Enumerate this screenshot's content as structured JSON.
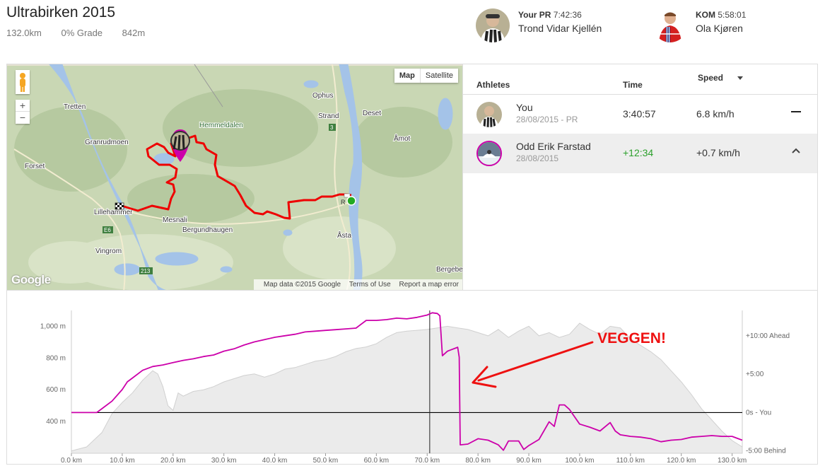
{
  "segment": {
    "title": "Ultrabirken 2015",
    "distance": "132.0km",
    "grade": "0% Grade",
    "elevation": "842m"
  },
  "leaders": {
    "pr": {
      "label": "Your PR",
      "time": "7:42:36",
      "name": "Trond Vidar Kjellén"
    },
    "kom": {
      "label": "KOM",
      "time": "5:58:01",
      "name": "Ola Kjøren"
    }
  },
  "map": {
    "toggle": [
      "Map",
      "Satellite"
    ],
    "zoom_in": "+",
    "zoom_out": "−",
    "logo": "Google",
    "footer": [
      "Map data ©2015 Google",
      "Terms of Use",
      "Report a map error"
    ],
    "place_labels": [
      "Tretten",
      "Ophus",
      "Strand",
      "Deset",
      "Hemmeldalen",
      "Åmot",
      "Granrudmoen",
      "Forset",
      "Lillehammer",
      "Mesnali",
      "Bergundhaugen",
      "Vingrom",
      "Åsta",
      "Bergebe",
      "3",
      "E6",
      "213",
      "R"
    ],
    "colors": {
      "route": "#ee0000",
      "start": "#22aa22",
      "terrain": "#c9d7b4",
      "water": "#a4c3e8"
    }
  },
  "compare": {
    "columns": {
      "athletes": "Athletes",
      "time": "Time",
      "speed": "Speed"
    },
    "rows": [
      {
        "name": "You",
        "date": "28/08/2015 - PR",
        "time": "3:40:57",
        "speed": "6.8 km/h",
        "action_icon": "minus-icon"
      },
      {
        "name": "Odd Erik Farstad",
        "date": "28/08/2015",
        "time": "+12:34",
        "speed": "+0.7 km/h",
        "action_icon": "chevron-up-icon"
      }
    ]
  },
  "chart_data": {
    "type": "area",
    "title": "",
    "xlabel": "",
    "ylabel": "",
    "xlim": [
      0,
      132
    ],
    "ylim": [
      200,
      1100
    ],
    "x_ticks": [
      "0.0 km",
      "10.0 km",
      "20.0 km",
      "30.0 km",
      "40.0 km",
      "50.0 km",
      "60.0 km",
      "70.0 km",
      "80.0 km",
      "90.0 km",
      "100.0 km",
      "110.0 km",
      "120.0 km",
      "130.0 km"
    ],
    "y_ticks_left": [
      "1,000 m",
      "800 m",
      "600 m",
      "400 m"
    ],
    "y_ticks_left_values": [
      1000,
      800,
      600,
      400
    ],
    "y_ticks_right": [
      "+10:00 Ahead",
      "+5:00",
      "0s - You",
      "-5:00 Behind"
    ],
    "y_ticks_right_values": [
      10,
      5,
      0,
      -5
    ],
    "y2lim": [
      -5.3,
      13.3
    ],
    "cursor_x": 70.5,
    "annotation": "VEGGEN!",
    "series": [
      {
        "name": "elevation",
        "color": "#d0d0d0",
        "x": [
          0,
          3,
          6,
          8,
          10,
          12,
          14,
          16,
          17,
          18,
          19,
          20,
          21,
          22,
          24,
          26,
          28,
          30,
          32,
          34,
          36,
          38,
          40,
          42,
          44,
          46,
          48,
          50,
          52,
          54,
          56,
          58,
          60,
          62,
          64,
          66,
          68,
          70,
          72,
          74,
          76,
          78,
          80,
          82,
          84,
          86,
          88,
          90,
          92,
          94,
          96,
          98,
          100,
          102,
          104,
          106,
          108,
          110,
          112,
          114,
          116,
          118,
          120,
          122,
          124,
          126,
          128,
          130,
          132
        ],
        "y": [
          215,
          240,
          330,
          450,
          520,
          580,
          660,
          720,
          700,
          620,
          500,
          470,
          580,
          560,
          590,
          600,
          620,
          650,
          670,
          690,
          700,
          680,
          700,
          730,
          740,
          760,
          780,
          790,
          810,
          840,
          860,
          870,
          890,
          930,
          960,
          970,
          975,
          980,
          990,
          1000,
          990,
          980,
          960,
          940,
          980,
          930,
          970,
          1000,
          940,
          960,
          930,
          950,
          1020,
          980,
          950,
          1000,
          990,
          920,
          880,
          840,
          790,
          720,
          650,
          570,
          480,
          410,
          340,
          280,
          240
        ]
      },
      {
        "name": "time-gap",
        "color": "#cc00aa",
        "x": [
          0,
          5,
          6,
          8,
          10,
          11,
          12,
          14,
          16,
          18,
          20,
          22,
          24,
          26,
          28,
          30,
          32,
          34,
          36,
          38,
          40,
          42,
          44,
          46,
          48,
          50,
          52,
          54,
          56,
          58,
          60,
          62,
          64,
          66,
          68,
          70,
          71,
          72,
          72.5,
          73,
          74,
          76,
          76.3,
          76.5,
          78,
          80,
          82,
          84,
          85,
          86,
          88,
          89,
          90,
          92,
          94,
          95,
          96,
          97,
          98,
          100,
          102,
          104,
          106,
          107,
          108,
          110,
          112,
          114,
          116,
          118,
          120,
          122,
          124,
          126,
          128,
          130,
          132
        ],
        "y": [
          0,
          0,
          0.5,
          1.5,
          3,
          4,
          4.5,
          5.5,
          6,
          6.2,
          6.5,
          6.8,
          7,
          7.3,
          7.5,
          8,
          8.3,
          8.8,
          9.2,
          9.5,
          9.8,
          10,
          10.2,
          10.5,
          10.6,
          10.7,
          10.8,
          10.9,
          11,
          12,
          12,
          12.1,
          12.3,
          12.2,
          12.4,
          12.7,
          13,
          12.9,
          12.6,
          7.4,
          8,
          8.5,
          7.2,
          -4.2,
          -4.1,
          -3.4,
          -3.6,
          -4.2,
          -4.9,
          -3.7,
          -3.7,
          -4.8,
          -4.3,
          -3.5,
          -1.2,
          -1.8,
          1,
          1,
          0.4,
          -1.5,
          -1.9,
          -2.4,
          -1.3,
          -2.4,
          -2.9,
          -3.1,
          -3.2,
          -3.4,
          -3.8,
          -3.6,
          -3.5,
          -3.2,
          -3.1,
          -3.0,
          -3.1,
          -3.1,
          -3.6
        ]
      }
    ]
  }
}
